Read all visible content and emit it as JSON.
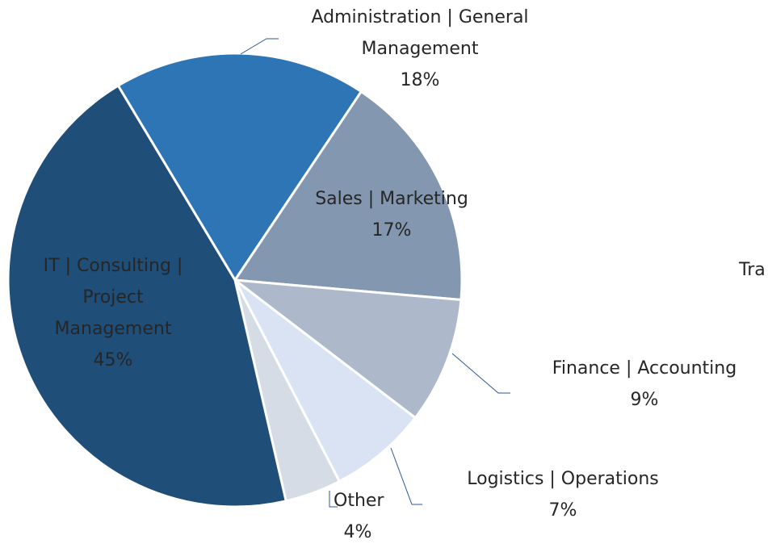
{
  "chart_data": {
    "type": "pie",
    "categories": [
      "Administration | General Management",
      "Sales | Marketing",
      "Finance | Accounting",
      "Logistics | Operations",
      "Other",
      "IT | Consulting | Project Management"
    ],
    "values": [
      18,
      17,
      9,
      7,
      4,
      45
    ],
    "value_labels": [
      "18%",
      "17%",
      "9%",
      "7%",
      "4%",
      "45%"
    ],
    "colors": [
      "#2e75b6",
      "#8497b0",
      "#adb9ca",
      "#dae3f3",
      "#d6dce5",
      "#1f4e79"
    ],
    "annotation": "Tra"
  }
}
